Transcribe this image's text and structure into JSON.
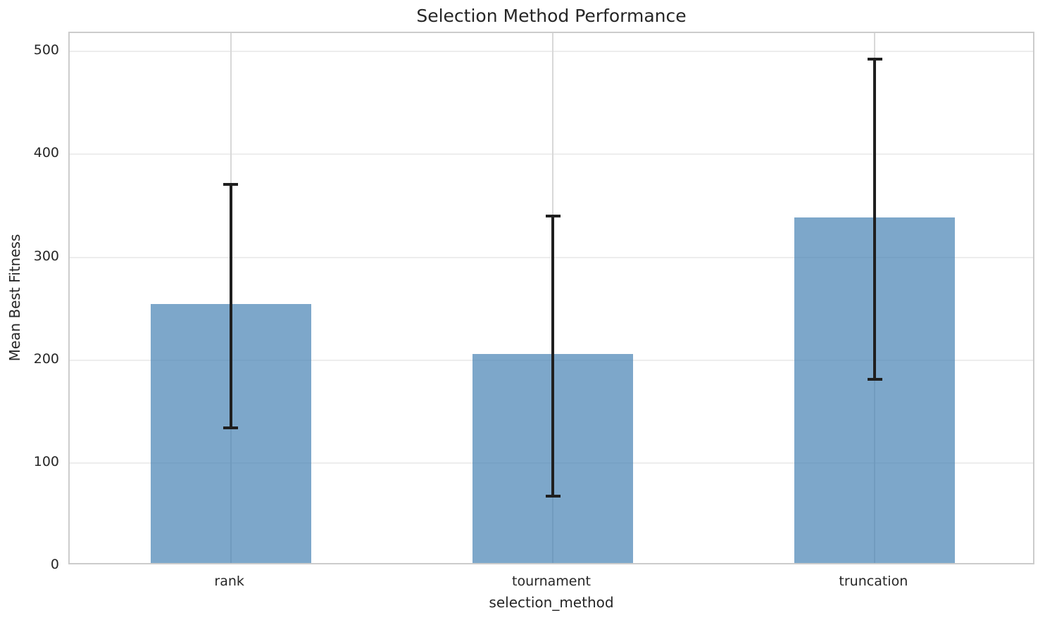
{
  "chart_data": {
    "type": "bar",
    "title": "Selection Method Performance",
    "xlabel": "selection_method",
    "ylabel": "Mean Best Fitness",
    "categories": [
      "rank",
      "tournament",
      "truncation"
    ],
    "values": [
      252,
      203,
      336
    ],
    "error_low": [
      134,
      68,
      181
    ],
    "error_high": [
      371,
      340,
      493
    ],
    "yticks": [
      0,
      100,
      200,
      300,
      400,
      500
    ],
    "ylim": [
      0,
      518
    ],
    "grid": true,
    "legend": false,
    "colors": {
      "bar_fill": "rgba(70, 130, 180, 0.7)",
      "error_bar": "#1f1f1f",
      "grid_horizontal": "#ededed",
      "grid_vertical": "#d8d8d8",
      "spine": "#cccccc",
      "text": "#262626"
    }
  }
}
